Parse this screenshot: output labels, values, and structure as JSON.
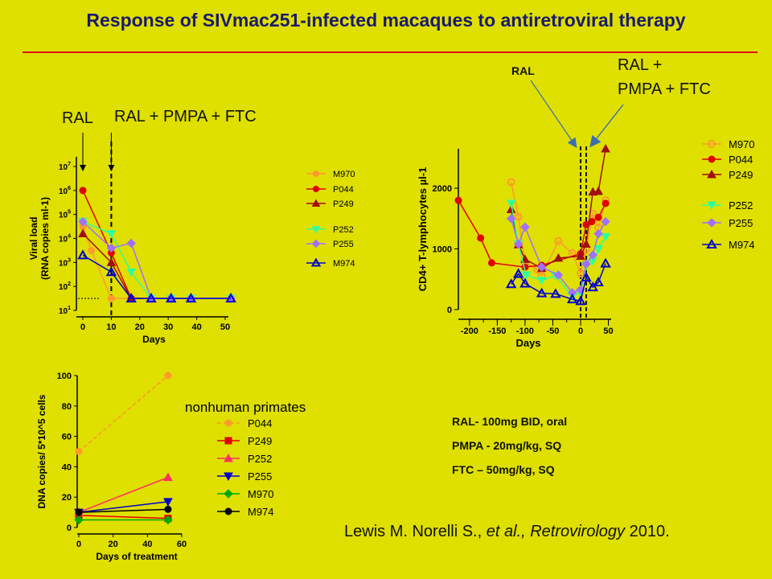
{
  "title": "Response of SIVmac251-infected macaques to antiretroviral therapy",
  "annotations": {
    "vl_ral": "RAL",
    "vl_combo": "RAL + PMPA + FTC",
    "cd4_ral": "RAL",
    "cd4_combo_line1": "RAL +",
    "cd4_combo_line2": "PMPA + FTC"
  },
  "dosing": [
    "RAL- 100mg BID, oral",
    "PMPA - 20mg/kg, SQ",
    "FTC – 50mg/kg, SQ"
  ],
  "citation": {
    "authors": "Lewis M. Norelli S., ",
    "etal": "et al., Retrovirology",
    "year": " 2010."
  },
  "colors": {
    "background": "#dfdf00",
    "title": "#1a1a70",
    "rule": "#e01010",
    "M970": "#ff9a2e",
    "P044": "#e00000",
    "P249": "#a01010",
    "P252": "#33ff99",
    "P255": "#a070ff",
    "M974": "#0000cc"
  },
  "chart_data": [
    {
      "type": "line",
      "id": "viral_load",
      "scale": "log",
      "xlabel": "Days",
      "ylabel_line1": "Viral load",
      "ylabel_line2": "(RNA copies ml-1)",
      "xlim": [
        0,
        50
      ],
      "xticks": [
        "0",
        "10",
        "20",
        "30",
        "40",
        "50"
      ],
      "ylim": [
        1,
        7
      ],
      "yticks": [
        "10^1",
        "10^2",
        "10^3",
        "10^4",
        "10^5",
        "10^6",
        "10^7"
      ],
      "events": [
        {
          "label": "RAL",
          "x": 0
        },
        {
          "label": "RAL + PMPA + FTC",
          "x": 10
        }
      ],
      "series": [
        {
          "name": "M970",
          "marker": "circle",
          "line": "solid",
          "points": [
            [
              0,
              4.5
            ],
            [
              3,
              3.5
            ],
            [
              10,
              1.5
            ],
            [
              17,
              1.5
            ],
            [
              24,
              1.5
            ],
            [
              31,
              1.5
            ],
            [
              38,
              1.5
            ],
            [
              52,
              1.5
            ]
          ]
        },
        {
          "name": "P044",
          "marker": "circle",
          "line": "solid",
          "points": [
            [
              0,
              6.0
            ],
            [
              10,
              3.4
            ],
            [
              17,
              1.5
            ],
            [
              24,
              1.5
            ],
            [
              31,
              1.5
            ],
            [
              38,
              1.5
            ],
            [
              52,
              1.5
            ]
          ]
        },
        {
          "name": "P249",
          "marker": "triangle-up",
          "line": "solid",
          "points": [
            [
              0,
              4.2
            ],
            [
              10,
              3.0
            ],
            [
              17,
              1.5
            ],
            [
              24,
              1.5
            ],
            [
              31,
              1.5
            ],
            [
              38,
              1.5
            ],
            [
              52,
              1.5
            ]
          ]
        },
        {
          "name": "P252",
          "marker": "triangle-down",
          "line": "solid",
          "points": [
            [
              0,
              4.7
            ],
            [
              10,
              4.2
            ],
            [
              17,
              2.6
            ],
            [
              24,
              1.5
            ],
            [
              31,
              1.5
            ],
            [
              38,
              1.5
            ],
            [
              52,
              1.5
            ]
          ]
        },
        {
          "name": "P255",
          "marker": "diamond",
          "line": "solid",
          "points": [
            [
              0,
              4.7
            ],
            [
              10,
              3.6
            ],
            [
              17,
              3.8
            ],
            [
              24,
              1.5
            ],
            [
              31,
              1.5
            ],
            [
              38,
              1.5
            ],
            [
              52,
              1.5
            ]
          ]
        },
        {
          "name": "M974",
          "marker": "triangle-up-open",
          "line": "solid",
          "points": [
            [
              0,
              3.3
            ],
            [
              10,
              2.6
            ],
            [
              17,
              1.5
            ],
            [
              24,
              1.5
            ],
            [
              31,
              1.5
            ],
            [
              38,
              1.5
            ],
            [
              52,
              1.5
            ]
          ]
        }
      ]
    },
    {
      "type": "line",
      "id": "cd4",
      "xlabel": "Days",
      "ylabel": "CD4+ T-lymphocytes µl-1",
      "xlim": [
        -220,
        55
      ],
      "xticks": [
        "-200",
        "-150",
        "-100",
        "-50",
        "0",
        "50"
      ],
      "ylim": [
        0,
        2650
      ],
      "yticks": [
        "0",
        "1000",
        "2000"
      ],
      "events": [
        {
          "label": "RAL",
          "x": 0
        },
        {
          "label": "RAL + PMPA + FTC",
          "x": 10
        }
      ],
      "series": [
        {
          "name": "M970",
          "marker": "circle-open",
          "points": [
            [
              -125,
              2100
            ],
            [
              -112,
              1530
            ],
            [
              -100,
              780
            ],
            [
              -78,
              660
            ],
            [
              -70,
              560
            ],
            [
              -40,
              1130
            ],
            [
              -15,
              930
            ],
            [
              0,
              600
            ],
            [
              10,
              1000
            ],
            [
              22,
              1580
            ],
            [
              32,
              1350
            ],
            [
              45,
              1800
            ]
          ]
        },
        {
          "name": "P044",
          "marker": "circle",
          "points": [
            [
              -220,
              1800
            ],
            [
              -180,
              1180
            ],
            [
              -160,
              770
            ],
            [
              -100,
              700
            ],
            [
              -70,
              730
            ],
            [
              0,
              920
            ],
            [
              10,
              1400
            ],
            [
              20,
              1450
            ],
            [
              32,
              1520
            ],
            [
              45,
              1750
            ]
          ]
        },
        {
          "name": "P249",
          "marker": "triangle-up",
          "points": [
            [
              -125,
              1650
            ],
            [
              -112,
              1070
            ],
            [
              -100,
              830
            ],
            [
              -70,
              680
            ],
            [
              -40,
              850
            ],
            [
              0,
              880
            ],
            [
              10,
              1080
            ],
            [
              22,
              1940
            ],
            [
              32,
              1950
            ],
            [
              45,
              2650
            ]
          ]
        },
        {
          "name": "P252",
          "marker": "triangle-down",
          "points": [
            [
              -125,
              1750
            ],
            [
              -112,
              1080
            ],
            [
              -98,
              570
            ],
            [
              -70,
              480
            ],
            [
              -45,
              560
            ],
            [
              -15,
              220
            ],
            [
              0,
              280
            ],
            [
              10,
              720
            ],
            [
              22,
              800
            ],
            [
              32,
              1000
            ],
            [
              45,
              1200
            ]
          ]
        },
        {
          "name": "P255",
          "marker": "diamond",
          "points": [
            [
              -125,
              1500
            ],
            [
              -112,
              1080
            ],
            [
              -100,
              1360
            ],
            [
              -70,
              700
            ],
            [
              -40,
              570
            ],
            [
              -15,
              280
            ],
            [
              0,
              330
            ],
            [
              10,
              750
            ],
            [
              22,
              900
            ],
            [
              32,
              1250
            ],
            [
              45,
              1450
            ]
          ]
        },
        {
          "name": "M974",
          "marker": "triangle-up-open",
          "points": [
            [
              -125,
              420
            ],
            [
              -112,
              590
            ],
            [
              -100,
              430
            ],
            [
              -70,
              270
            ],
            [
              -45,
              260
            ],
            [
              -15,
              170
            ],
            [
              0,
              140
            ],
            [
              10,
              530
            ],
            [
              22,
              370
            ],
            [
              32,
              450
            ],
            [
              45,
              760
            ]
          ]
        }
      ]
    },
    {
      "type": "line",
      "id": "dna",
      "title": "nonhuman primates",
      "xlabel": "Days of treatment",
      "ylabel": "DNA copies/ 5*10^5 cells",
      "xlim": [
        0,
        60
      ],
      "xticks": [
        "0",
        "20",
        "40",
        "60"
      ],
      "ylim": [
        0,
        100
      ],
      "yticks": [
        "0",
        "20",
        "40",
        "60",
        "80",
        "100"
      ],
      "series": [
        {
          "name": "P044",
          "marker": "circle",
          "line": "dashed",
          "points": [
            [
              0,
              50
            ],
            [
              52,
              100
            ]
          ]
        },
        {
          "name": "P249",
          "marker": "square",
          "line": "solid",
          "points": [
            [
              0,
              8
            ],
            [
              52,
              6
            ]
          ]
        },
        {
          "name": "P252",
          "marker": "triangle-up",
          "line": "solid",
          "points": [
            [
              0,
              10
            ],
            [
              52,
              33
            ]
          ]
        },
        {
          "name": "P255",
          "marker": "triangle-down",
          "line": "solid",
          "points": [
            [
              0,
              10
            ],
            [
              52,
              17
            ]
          ]
        },
        {
          "name": "M970",
          "marker": "diamond",
          "line": "solid",
          "points": [
            [
              0,
              5
            ],
            [
              52,
              5
            ]
          ]
        },
        {
          "name": "M974",
          "marker": "circle",
          "line": "solid",
          "points": [
            [
              0,
              10
            ],
            [
              52,
              12
            ]
          ]
        }
      ]
    }
  ],
  "dna_colors": {
    "P044": "#ff9a2e",
    "P249": "#e00000",
    "P252": "#ff3060",
    "P255": "#0000cc",
    "M970": "#00aa00",
    "M974": "#000000"
  }
}
